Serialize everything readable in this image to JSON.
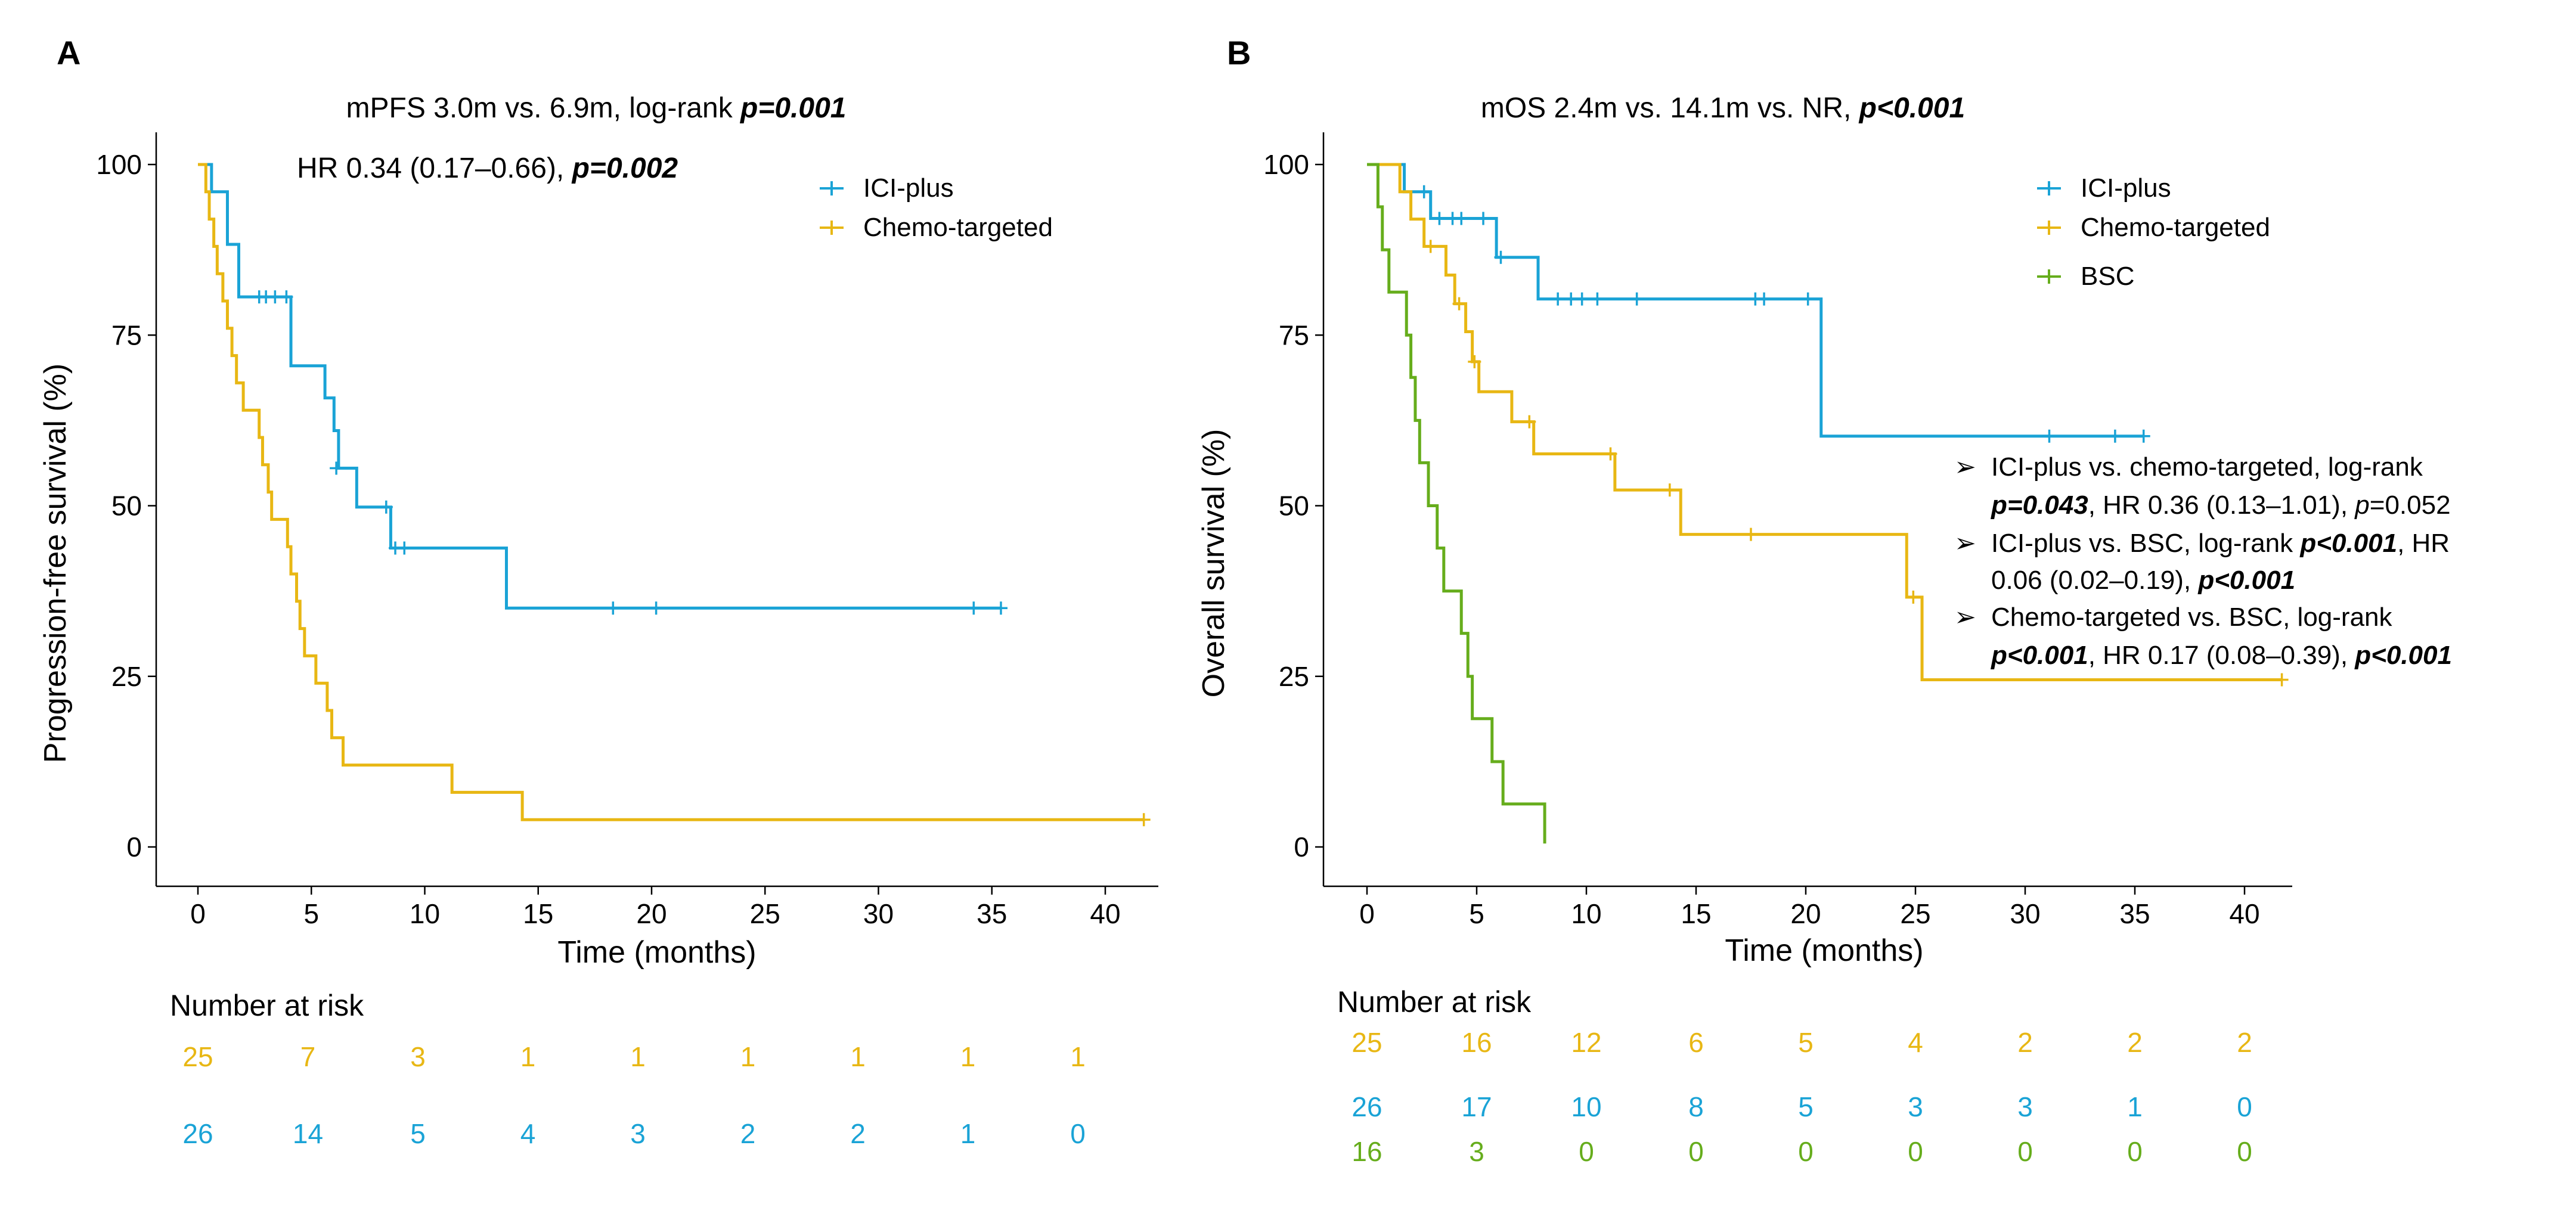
{
  "colors": {
    "ici": "#1aa3d6",
    "chemo": "#e8b714",
    "bsc": "#66ad1c",
    "axis": "#000000"
  },
  "chart_data": [
    {
      "type": "line",
      "panel": "A",
      "title_prefix": "mPFS 3.0m vs. 6.9m, log-rank ",
      "title_p": "p=0.001",
      "subtitle_prefix": "HR 0.34 (0.17–0.66), ",
      "subtitle_p": "p=0.002",
      "xlabel": "Time (months)",
      "ylabel": "Progression-free survival (%)",
      "xlim": [
        -2,
        42
      ],
      "ylim": [
        -4,
        105
      ],
      "xticks": [
        0,
        5,
        10,
        15,
        20,
        25,
        30,
        35,
        40
      ],
      "yticks": [
        0,
        25,
        50,
        75,
        100
      ],
      "legend_position": "top-right",
      "series": [
        {
          "name": "ICI-plus",
          "color_key": "ici",
          "steps": [
            [
              0,
              100
            ],
            [
              0.6,
              96
            ],
            [
              1.3,
              88.3
            ],
            [
              1.8,
              80.6
            ],
            [
              4.1,
              70.5
            ],
            [
              5.6,
              65.8
            ],
            [
              6.0,
              61
            ],
            [
              6.2,
              55.5
            ],
            [
              7.0,
              49.8
            ],
            [
              8.5,
              43.8
            ],
            [
              13.6,
              35
            ],
            [
              35.4,
              35
            ]
          ],
          "censor": [
            [
              2.7,
              80.6
            ],
            [
              3.0,
              80.6
            ],
            [
              3.4,
              80.6
            ],
            [
              3.9,
              80.6
            ],
            [
              6.1,
              55.5
            ],
            [
              8.3,
              49.8
            ],
            [
              8.7,
              43.8
            ],
            [
              9.1,
              43.8
            ],
            [
              18.3,
              35
            ],
            [
              20.2,
              35
            ],
            [
              34.2,
              35
            ],
            [
              35.4,
              35
            ]
          ]
        },
        {
          "name": "Chemo-targeted",
          "color_key": "chemo",
          "steps": [
            [
              0,
              100
            ],
            [
              0.35,
              96
            ],
            [
              0.5,
              92
            ],
            [
              0.7,
              88
            ],
            [
              0.85,
              84
            ],
            [
              1.1,
              80
            ],
            [
              1.3,
              76
            ],
            [
              1.5,
              72
            ],
            [
              1.7,
              68
            ],
            [
              2.0,
              64
            ],
            [
              2.7,
              60
            ],
            [
              2.85,
              56
            ],
            [
              3.1,
              52
            ],
            [
              3.25,
              48
            ],
            [
              3.95,
              44
            ],
            [
              4.1,
              40
            ],
            [
              4.35,
              36
            ],
            [
              4.5,
              32
            ],
            [
              4.7,
              28
            ],
            [
              5.2,
              24
            ],
            [
              5.7,
              20
            ],
            [
              5.9,
              16
            ],
            [
              6.4,
              12
            ],
            [
              11.2,
              8
            ],
            [
              14.3,
              4
            ],
            [
              41.7,
              4
            ]
          ],
          "censor": [
            [
              41.7,
              4
            ]
          ]
        }
      ],
      "risk_table": {
        "title": "Number at risk",
        "rows": [
          {
            "color_key": "chemo",
            "values": [
              "25",
              "7",
              "3",
              "1",
              "1",
              "1",
              "1",
              "1",
              "1"
            ]
          },
          {
            "color_key": "ici",
            "values": [
              "26",
              "14",
              "5",
              "4",
              "3",
              "2",
              "2",
              "1",
              "0"
            ]
          }
        ]
      }
    },
    {
      "type": "line",
      "panel": "B",
      "title_prefix": "mOS 2.4m vs. 14.1m vs. NR, ",
      "title_p": "p<0.001",
      "xlabel": "Time (months)",
      "ylabel": "Overall survival (%)",
      "xlim": [
        -2,
        42
      ],
      "ylim": [
        -4,
        105
      ],
      "xticks": [
        0,
        5,
        10,
        15,
        20,
        25,
        30,
        35,
        40
      ],
      "yticks": [
        0,
        25,
        50,
        75,
        100
      ],
      "legend_position": "top-right",
      "series": [
        {
          "name": "ICI-plus",
          "color_key": "ici",
          "steps": [
            [
              0,
              100
            ],
            [
              1.7,
              96
            ],
            [
              2.9,
              92.1
            ],
            [
              5.9,
              86.4
            ],
            [
              7.8,
              80.3
            ],
            [
              20.7,
              60.2
            ],
            [
              35.4,
              60.2
            ]
          ],
          "censor": [
            [
              2.6,
              96
            ],
            [
              3.3,
              92.1
            ],
            [
              3.9,
              92.1
            ],
            [
              4.3,
              92.1
            ],
            [
              5.3,
              92.1
            ],
            [
              6.1,
              86.4
            ],
            [
              8.7,
              80.3
            ],
            [
              9.3,
              80.3
            ],
            [
              9.8,
              80.3
            ],
            [
              10.5,
              80.3
            ],
            [
              12.3,
              80.3
            ],
            [
              17.7,
              80.3
            ],
            [
              18.1,
              80.3
            ],
            [
              20.1,
              80.3
            ],
            [
              31.1,
              60.2
            ],
            [
              34.1,
              60.2
            ],
            [
              35.4,
              60.2
            ]
          ]
        },
        {
          "name": "Chemo-targeted",
          "color_key": "chemo",
          "steps": [
            [
              0,
              100
            ],
            [
              1.5,
              96
            ],
            [
              2.0,
              92
            ],
            [
              2.6,
              88
            ],
            [
              3.6,
              83.8
            ],
            [
              4.0,
              79.6
            ],
            [
              4.5,
              75.5
            ],
            [
              4.8,
              71.1
            ],
            [
              5.1,
              66.7
            ],
            [
              6.6,
              62.3
            ],
            [
              7.6,
              57.6
            ],
            [
              11.3,
              52.3
            ],
            [
              14.3,
              45.8
            ],
            [
              24.6,
              36.6
            ],
            [
              25.3,
              24.5
            ],
            [
              41.7,
              24.5
            ]
          ],
          "censor": [
            [
              2.9,
              88
            ],
            [
              4.2,
              79.6
            ],
            [
              4.9,
              71.1
            ],
            [
              7.4,
              62.3
            ],
            [
              11.1,
              57.6
            ],
            [
              13.8,
              52.3
            ],
            [
              17.5,
              45.8
            ],
            [
              24.9,
              36.6
            ],
            [
              41.7,
              24.5
            ]
          ]
        },
        {
          "name": "BSC",
          "color_key": "bsc",
          "steps": [
            [
              0,
              100
            ],
            [
              0.5,
              93.8
            ],
            [
              0.7,
              87.5
            ],
            [
              1.0,
              81.3
            ],
            [
              1.8,
              75
            ],
            [
              2.0,
              68.8
            ],
            [
              2.2,
              62.5
            ],
            [
              2.4,
              56.3
            ],
            [
              2.8,
              50
            ],
            [
              3.2,
              43.8
            ],
            [
              3.5,
              37.5
            ],
            [
              4.3,
              31.3
            ],
            [
              4.6,
              25
            ],
            [
              4.8,
              18.8
            ],
            [
              5.7,
              12.5
            ],
            [
              6.2,
              6.3
            ],
            [
              8.1,
              0.5
            ]
          ],
          "censor": []
        }
      ],
      "annotations": [
        {
          "line1": "ICI-plus vs. chemo-targeted, log-rank",
          "line2_bold_p": "p=0.043",
          "line2_rest": ", HR 0.36 (0.13–1.01), ",
          "line2_italic_p": "p",
          "line2_end": "=0.052"
        },
        {
          "line1_prefix": "ICI-plus vs. BSC, log-rank ",
          "line1_bold_p": "p<0.001",
          "line1_end": ", HR",
          "line2_rest": "0.06 (0.02–0.19), ",
          "line2_bold_p": "p<0.001"
        },
        {
          "line1": "Chemo-targeted vs. BSC, log-rank",
          "line2_bold_p": "p<0.001",
          "line2_rest": ", HR 0.17 (0.08–0.39), ",
          "line2_bold_p2": "p<0.001"
        }
      ],
      "risk_table": {
        "title": "Number at risk",
        "rows": [
          {
            "color_key": "chemo",
            "values": [
              "25",
              "16",
              "12",
              "6",
              "5",
              "4",
              "2",
              "2",
              "2"
            ]
          },
          {
            "color_key": "ici",
            "values": [
              "26",
              "17",
              "10",
              "8",
              "5",
              "3",
              "3",
              "1",
              "0"
            ]
          },
          {
            "color_key": "bsc",
            "values": [
              "16",
              "3",
              "0",
              "0",
              "0",
              "0",
              "0",
              "0",
              "0"
            ]
          }
        ]
      }
    }
  ]
}
